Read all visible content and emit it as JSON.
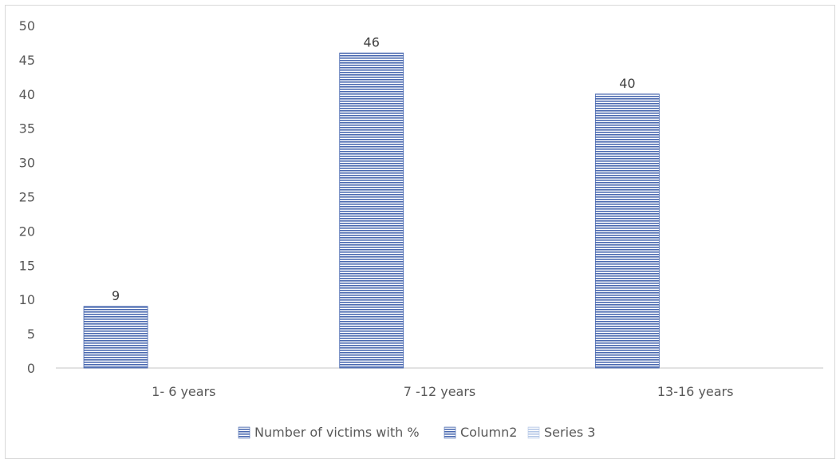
{
  "chart_data": {
    "type": "bar",
    "categories": [
      "1- 6 years",
      "7 -12 years",
      "13-16 years"
    ],
    "series": [
      {
        "name": "Number of victims with %",
        "values": [
          9,
          46,
          40
        ],
        "color": "#4a69b0"
      },
      {
        "name": "Column2",
        "values": [
          null,
          null,
          null
        ],
        "color": "#4a69b0"
      },
      {
        "name": "Series 3",
        "values": [
          null,
          null,
          null
        ],
        "color": "#b4c7e7"
      }
    ],
    "data_labels": [
      "9",
      "46",
      "40"
    ],
    "y_ticks": [
      "0",
      "5",
      "10",
      "15",
      "20",
      "25",
      "30",
      "35",
      "40",
      "45",
      "50"
    ],
    "ylim": [
      0,
      50
    ],
    "grid": false,
    "legend_position": "bottom",
    "title": "",
    "xlabel": "",
    "ylabel": ""
  }
}
